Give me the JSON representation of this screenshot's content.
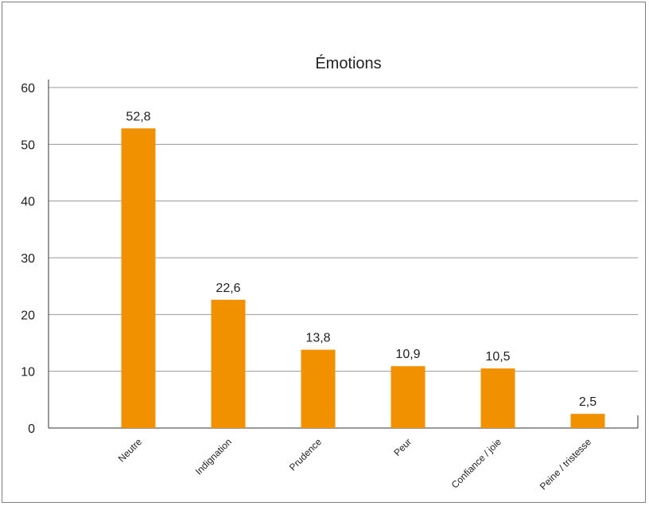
{
  "chart_data": {
    "type": "bar",
    "title": "Émotions",
    "xlabel": "",
    "ylabel": "",
    "categories": [
      "Neutre",
      "Indignation",
      "Prudence",
      "Peur",
      "Confiance / joie",
      "Peine / tristesse"
    ],
    "values": [
      52.8,
      22.6,
      13.8,
      10.9,
      10.5,
      2.5
    ],
    "value_labels": [
      "52,8",
      "22,6",
      "13,8",
      "10,9",
      "10,5",
      "2,5"
    ],
    "ylim": [
      0,
      60
    ],
    "yticks": [
      0,
      10,
      20,
      30,
      40,
      50,
      60
    ],
    "ytick_labels": [
      "0",
      "10",
      "20",
      "30",
      "40",
      "50",
      "60"
    ],
    "grid": true,
    "legend": "none",
    "bar_color": "#f29100",
    "grid_color": "#9a9a9a"
  }
}
